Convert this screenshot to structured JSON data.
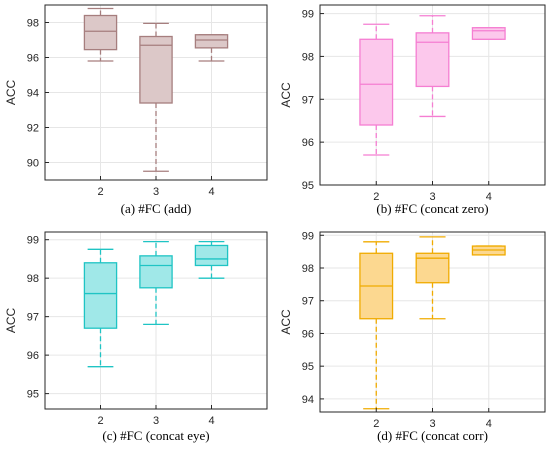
{
  "chart_data": [
    {
      "type": "box",
      "panel_label": "(a)",
      "caption": "#FC (add)",
      "ylabel": "ACC",
      "categories": [
        "2",
        "3",
        "4"
      ],
      "ylim": [
        89,
        99
      ],
      "yticks": [
        90,
        92,
        94,
        96,
        98
      ],
      "grid": true,
      "color": "#a67e7e",
      "fill": "#dcc8c8",
      "boxes": [
        {
          "x": "2",
          "min": 95.8,
          "q1": 96.45,
          "median": 97.5,
          "q3": 98.4,
          "max": 98.8
        },
        {
          "x": "3",
          "min": 89.5,
          "q1": 93.4,
          "median": 96.7,
          "q3": 97.2,
          "max": 97.95
        },
        {
          "x": "4",
          "min": 95.8,
          "q1": 96.55,
          "median": 97.0,
          "q3": 97.3,
          "max": 97.3
        }
      ]
    },
    {
      "type": "box",
      "panel_label": "(b)",
      "caption": "#FC (concat zero)",
      "ylabel": "ACC",
      "categories": [
        "2",
        "3",
        "4"
      ],
      "ylim": [
        95,
        99.2
      ],
      "yticks": [
        95,
        96,
        97,
        98,
        99
      ],
      "grid": true,
      "color": "#f57ed2",
      "fill": "#fcc8ec",
      "boxes": [
        {
          "x": "2",
          "min": 95.7,
          "q1": 96.4,
          "median": 97.35,
          "q3": 98.4,
          "max": 98.75
        },
        {
          "x": "3",
          "min": 96.6,
          "q1": 97.3,
          "median": 98.33,
          "q3": 98.55,
          "max": 98.95
        },
        {
          "x": "4",
          "min": 98.4,
          "q1": 98.4,
          "median": 98.6,
          "q3": 98.67,
          "max": 98.67
        }
      ]
    },
    {
      "type": "box",
      "panel_label": "(c)",
      "caption": "#FC (concat eye)",
      "ylabel": "ACC",
      "categories": [
        "2",
        "3",
        "4"
      ],
      "ylim": [
        94.6,
        99.2
      ],
      "yticks": [
        95,
        96,
        97,
        98,
        99
      ],
      "grid": true,
      "color": "#1fc4c4",
      "fill": "#a0e8e8",
      "boxes": [
        {
          "x": "2",
          "min": 95.7,
          "q1": 96.7,
          "median": 97.6,
          "q3": 98.4,
          "max": 98.75
        },
        {
          "x": "3",
          "min": 96.8,
          "q1": 97.75,
          "median": 98.33,
          "q3": 98.58,
          "max": 98.95
        },
        {
          "x": "4",
          "min": 98.0,
          "q1": 98.33,
          "median": 98.5,
          "q3": 98.85,
          "max": 98.95
        }
      ]
    },
    {
      "type": "box",
      "panel_label": "(d)",
      "caption": "#FC (concat corr)",
      "ylabel": "ACC",
      "categories": [
        "2",
        "3",
        "4"
      ],
      "ylim": [
        93.6,
        99.1
      ],
      "yticks": [
        94,
        95,
        96,
        97,
        98,
        99
      ],
      "grid": true,
      "color": "#f0ab00",
      "fill": "#fcd890",
      "boxes": [
        {
          "x": "2",
          "min": 93.7,
          "q1": 96.45,
          "median": 97.45,
          "q3": 98.45,
          "max": 98.8
        },
        {
          "x": "3",
          "min": 96.45,
          "q1": 97.55,
          "median": 98.3,
          "q3": 98.45,
          "max": 98.95
        },
        {
          "x": "4",
          "min": 98.4,
          "q1": 98.4,
          "median": 98.55,
          "q3": 98.67,
          "max": 98.67
        }
      ]
    }
  ]
}
